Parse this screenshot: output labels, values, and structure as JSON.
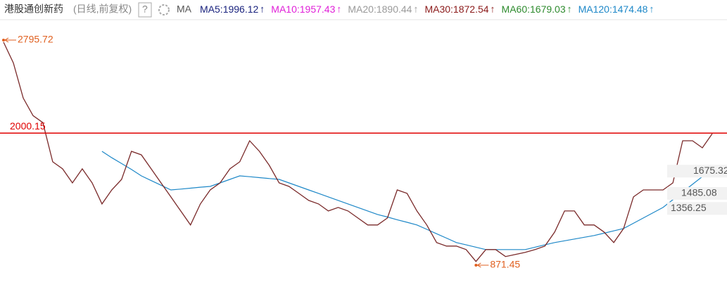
{
  "chart_data": {
    "type": "line",
    "title": "港股通创新药",
    "subtitle": "(日线,前复权)",
    "indicator": "MA",
    "legend": [
      {
        "name": "MA5",
        "value": 1996.12,
        "color": "#1a237e"
      },
      {
        "name": "MA10",
        "value": 1957.43,
        "color": "#e020d8"
      },
      {
        "name": "MA20",
        "value": 1890.44,
        "color": "#9a9a9a"
      },
      {
        "name": "MA30",
        "value": 1872.54,
        "color": "#8b1a1a"
      },
      {
        "name": "MA60",
        "value": 1679.03,
        "color": "#2e8b2e"
      },
      {
        "name": "MA120",
        "value": 1474.48,
        "color": "#1e88c8"
      }
    ],
    "ylim": [
      733,
      2970
    ],
    "values": [
      2778,
      2600,
      2300,
      2150,
      2090,
      1755,
      1695,
      1575,
      1695,
      1575,
      1395,
      1515,
      1605,
      1845,
      1815,
      1695,
      1575,
      1455,
      1335,
      1215,
      1395,
      1515,
      1575,
      1695,
      1755,
      1935,
      1845,
      1725,
      1575,
      1545,
      1485,
      1425,
      1395,
      1335,
      1365,
      1335,
      1275,
      1215,
      1215,
      1275,
      1515,
      1485,
      1335,
      1215,
      1065,
      1035,
      1035,
      1005,
      903,
      1005,
      1005,
      945,
      963,
      981,
      1005,
      1035,
      1155,
      1335,
      1335,
      1215,
      1215,
      1155,
      1065,
      1185,
      1455,
      1515,
      1515,
      1515,
      1575,
      1935,
      1935,
      1875,
      1995
    ],
    "color": "#7a2a2a",
    "ma_lines": [
      {
        "color": "#1e88c8",
        "values": [
          null,
          null,
          null,
          null,
          null,
          null,
          null,
          null,
          null,
          null,
          1845,
          1790,
          1740,
          1690,
          1635,
          1595,
          1555,
          1515,
          1522,
          1530,
          1538,
          1545,
          1575,
          1605,
          1635,
          1628,
          1620,
          1612,
          1605,
          1575,
          1545,
          1515,
          1485,
          1455,
          1425,
          1395,
          1365,
          1335,
          1305,
          1283,
          1260,
          1238,
          1215,
          1178,
          1140,
          1103,
          1065,
          1045,
          1025,
          1005,
          1005,
          1005,
          1005,
          1005,
          1025,
          1045,
          1065,
          1080,
          1095,
          1110,
          1125,
          1145,
          1165,
          1185,
          1230,
          1275,
          1320,
          1365,
          1431,
          1497,
          1563,
          1629,
          1695
        ]
      }
    ],
    "hline": {
      "value": 2000.15,
      "color": "#e00000"
    },
    "annotations": [
      {
        "value": 2795.72,
        "index": 0
      },
      {
        "value": 871.45,
        "index": 48
      }
    ],
    "right_labels": [
      1675.32,
      1485.08,
      1356.25
    ]
  }
}
